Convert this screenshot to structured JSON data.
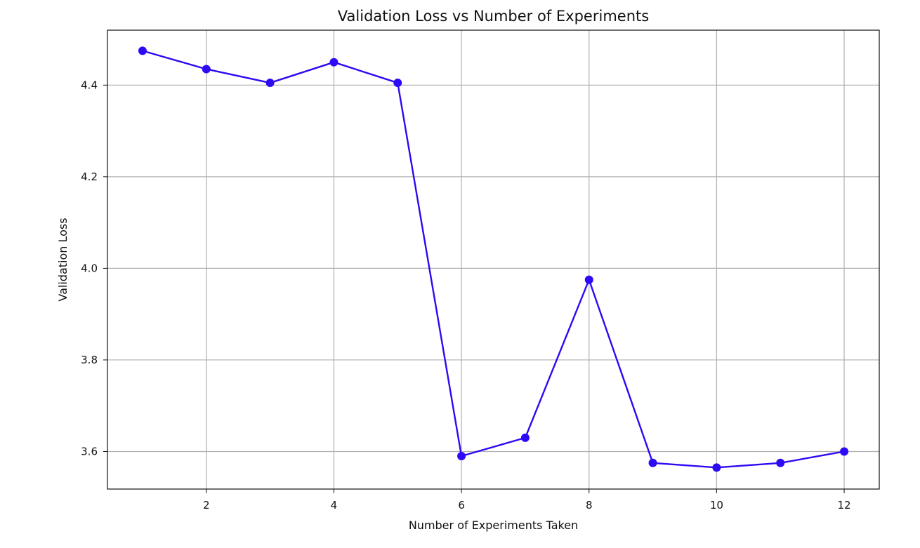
{
  "chart_data": {
    "type": "line",
    "title": "Validation Loss vs Number of Experiments",
    "xlabel": "Number of Experiments Taken",
    "ylabel": "Validation Loss",
    "x": [
      1,
      2,
      3,
      4,
      5,
      6,
      7,
      8,
      9,
      10,
      11,
      12
    ],
    "series": [
      {
        "values": [
          4.475,
          4.435,
          4.405,
          4.45,
          4.405,
          3.59,
          3.63,
          3.975,
          3.575,
          3.565,
          3.575,
          3.6
        ]
      }
    ],
    "xlim": [
      0.45,
      12.55
    ],
    "ylim": [
      3.518,
      4.52
    ],
    "xticks": [
      2,
      4,
      6,
      8,
      10,
      12
    ],
    "yticks": [
      3.6,
      3.8,
      4.0,
      4.2,
      4.4
    ],
    "ytick_labels": [
      "3.6",
      "3.8",
      "4.0",
      "4.2",
      "4.4"
    ],
    "grid": true,
    "line_color": "#2C0AF4",
    "marker_color": "#2C0AF4",
    "marker": "circle"
  }
}
